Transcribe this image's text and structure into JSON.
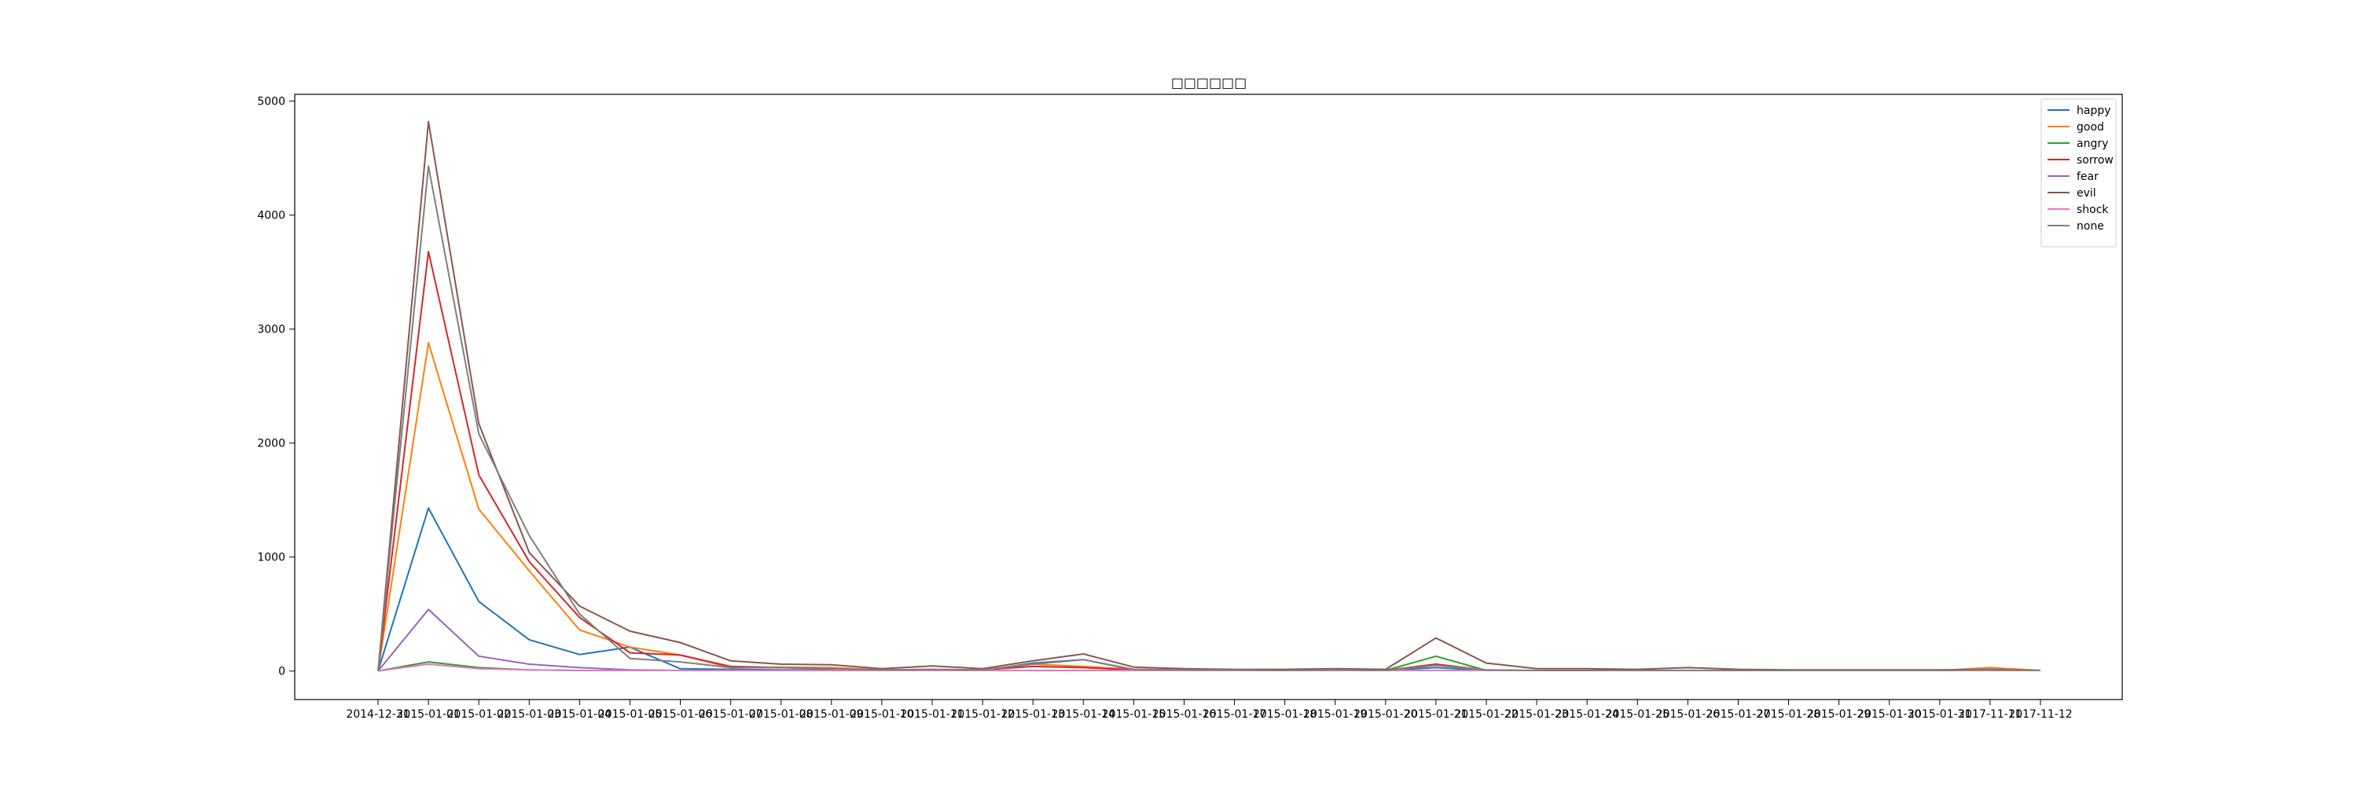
{
  "chart_data": {
    "type": "line",
    "title": "□□□□□□",
    "xlabel": "",
    "ylabel": "",
    "ylim": [
      -250,
      5060
    ],
    "yticks": [
      0,
      1000,
      2000,
      3000,
      4000,
      5000
    ],
    "grid": false,
    "legend_position": "top-right",
    "categories": [
      "2014-12-31",
      "2015-01-01",
      "2015-01-02",
      "2015-01-03",
      "2015-01-04",
      "2015-01-05",
      "2015-01-06",
      "2015-01-07",
      "2015-01-08",
      "2015-01-09",
      "2015-01-10",
      "2015-01-11",
      "2015-01-12",
      "2015-01-13",
      "2015-01-14",
      "2015-01-15",
      "2015-01-16",
      "2015-01-17",
      "2015-01-18",
      "2015-01-19",
      "2015-01-20",
      "2015-01-21",
      "2015-01-22",
      "2015-01-23",
      "2015-01-24",
      "2015-01-25",
      "2015-01-26",
      "2015-01-27",
      "2015-01-28",
      "2015-01-29",
      "2015-01-30",
      "2015-01-31",
      "2017-11-11",
      "2017-11-12"
    ],
    "series": [
      {
        "name": "happy",
        "color": "#1f77b4",
        "values": [
          0,
          1430,
          610,
          275,
          145,
          210,
          20,
          15,
          10,
          10,
          5,
          10,
          5,
          70,
          100,
          10,
          5,
          5,
          5,
          5,
          5,
          30,
          5,
          5,
          5,
          5,
          5,
          5,
          5,
          5,
          5,
          5,
          5,
          5
        ]
      },
      {
        "name": "good",
        "color": "#ff7f0e",
        "values": [
          0,
          2880,
          1420,
          880,
          360,
          210,
          140,
          30,
          35,
          30,
          10,
          15,
          10,
          60,
          40,
          15,
          10,
          10,
          5,
          10,
          5,
          60,
          10,
          5,
          5,
          5,
          5,
          5,
          5,
          5,
          5,
          5,
          30,
          5
        ]
      },
      {
        "name": "angry",
        "color": "#2ca02c",
        "values": [
          0,
          80,
          30,
          10,
          5,
          5,
          5,
          5,
          5,
          5,
          5,
          5,
          5,
          5,
          5,
          5,
          5,
          5,
          5,
          5,
          5,
          130,
          5,
          5,
          5,
          5,
          5,
          5,
          5,
          5,
          5,
          5,
          5,
          5
        ]
      },
      {
        "name": "sorrow",
        "color": "#d62728",
        "values": [
          0,
          3680,
          1720,
          960,
          470,
          160,
          140,
          40,
          30,
          20,
          10,
          10,
          10,
          40,
          30,
          10,
          5,
          5,
          5,
          5,
          5,
          60,
          5,
          5,
          5,
          5,
          5,
          5,
          5,
          5,
          5,
          5,
          10,
          5
        ]
      },
      {
        "name": "fear",
        "color": "#9467bd",
        "values": [
          0,
          540,
          130,
          60,
          30,
          10,
          5,
          5,
          5,
          5,
          5,
          5,
          5,
          5,
          5,
          5,
          5,
          5,
          5,
          5,
          5,
          5,
          5,
          5,
          5,
          5,
          5,
          5,
          5,
          5,
          5,
          5,
          5,
          5
        ]
      },
      {
        "name": "evil",
        "color": "#8c564b",
        "values": [
          0,
          4820,
          2170,
          1040,
          570,
          350,
          250,
          90,
          60,
          55,
          20,
          45,
          20,
          90,
          150,
          35,
          20,
          15,
          15,
          20,
          15,
          290,
          70,
          20,
          20,
          15,
          30,
          15,
          10,
          10,
          10,
          10,
          15,
          5
        ]
      },
      {
        "name": "shock",
        "color": "#e377c2",
        "values": [
          0,
          60,
          20,
          10,
          5,
          5,
          5,
          5,
          5,
          5,
          5,
          5,
          5,
          5,
          5,
          5,
          5,
          5,
          5,
          5,
          5,
          5,
          5,
          5,
          5,
          5,
          5,
          5,
          5,
          5,
          5,
          5,
          5,
          5
        ]
      },
      {
        "name": "none",
        "color": "#7f7f7f",
        "values": [
          0,
          4430,
          2080,
          1190,
          500,
          110,
          80,
          30,
          30,
          20,
          10,
          15,
          10,
          60,
          100,
          15,
          10,
          10,
          5,
          10,
          5,
          50,
          10,
          5,
          5,
          5,
          5,
          5,
          5,
          5,
          5,
          5,
          10,
          5
        ]
      }
    ]
  }
}
